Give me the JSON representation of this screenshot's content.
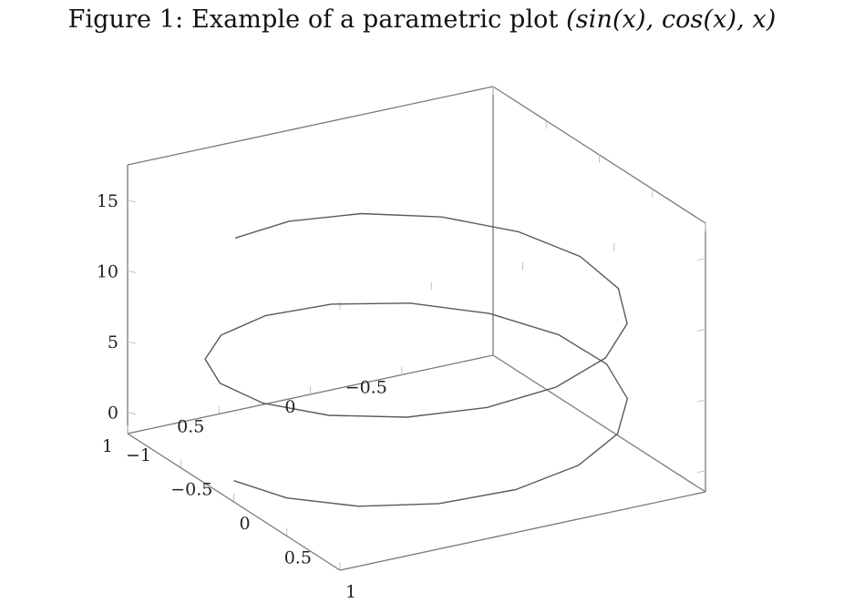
{
  "caption": {
    "prefix": "Figure 1:",
    "text": "Example of a parametric plot",
    "formula": "(sin(x), cos(x), x)"
  },
  "chart_data": {
    "type": "line",
    "view": "3d",
    "series": [
      {
        "parametric": {
          "x": "sin(t)",
          "y": "cos(t)",
          "z": "t"
        },
        "t_range": [
          0,
          11.5
        ]
      }
    ],
    "x_axis": {
      "range": [
        -1,
        1
      ],
      "ticks": [
        -1,
        -0.5,
        0,
        0.5,
        1
      ],
      "tick_labels": [
        "−1",
        "−0.5",
        "0",
        "0.5",
        "1"
      ]
    },
    "y_axis": {
      "range": [
        -1,
        1
      ],
      "ticks": [
        -0.5,
        0,
        0.5,
        1
      ],
      "tick_labels": [
        "−0.5",
        "0",
        "0.5",
        "1"
      ]
    },
    "z_axis": {
      "range": [
        -1.5,
        17.5
      ],
      "ticks": [
        0,
        5,
        10,
        15
      ],
      "tick_labels": [
        "0",
        "5",
        "10",
        "15"
      ]
    },
    "grid": false,
    "box": true
  }
}
